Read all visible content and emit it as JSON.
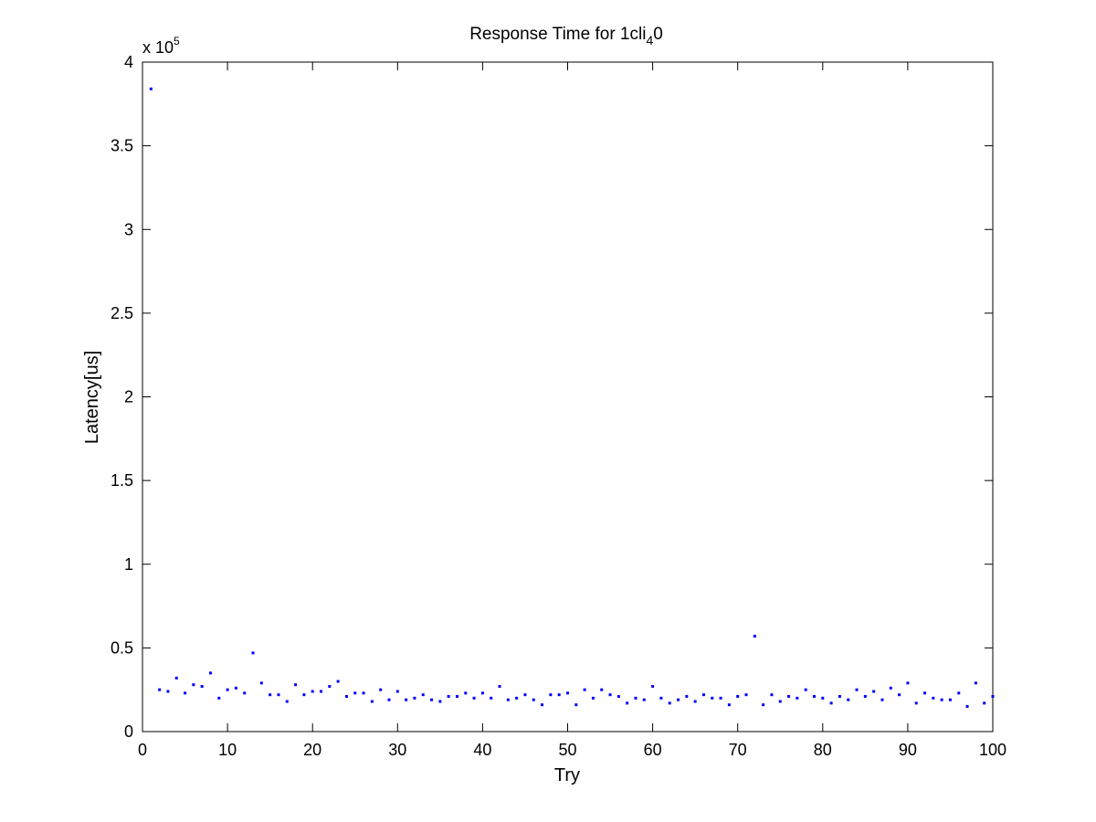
{
  "chart_data": {
    "type": "scatter",
    "title": {
      "prefix": "Response Time for 1cli",
      "subscript": "4",
      "suffix": "0"
    },
    "xlabel": "Try",
    "ylabel": "Latency[us]",
    "y_exponent": {
      "base": "x 10",
      "power": "5"
    },
    "xlim": [
      0,
      100
    ],
    "ylim": [
      0,
      4
    ],
    "x_ticks": [
      "0",
      "10",
      "20",
      "30",
      "40",
      "50",
      "60",
      "70",
      "80",
      "90",
      "100"
    ],
    "y_ticks": [
      "0",
      "0.5",
      "1",
      "1.5",
      "2",
      "2.5",
      "3",
      "3.5",
      "4"
    ],
    "grid": false,
    "marker_color": "#0000ff",
    "x": [
      1,
      2,
      3,
      4,
      5,
      6,
      7,
      8,
      9,
      10,
      11,
      12,
      13,
      14,
      15,
      16,
      17,
      18,
      19,
      20,
      21,
      22,
      23,
      24,
      25,
      26,
      27,
      28,
      29,
      30,
      31,
      32,
      33,
      34,
      35,
      36,
      37,
      38,
      39,
      40,
      41,
      42,
      43,
      44,
      45,
      46,
      47,
      48,
      49,
      50,
      51,
      52,
      53,
      54,
      55,
      56,
      57,
      58,
      59,
      60,
      61,
      62,
      63,
      64,
      65,
      66,
      67,
      68,
      69,
      70,
      71,
      72,
      73,
      74,
      75,
      76,
      77,
      78,
      79,
      80,
      81,
      82,
      83,
      84,
      85,
      86,
      87,
      88,
      89,
      90,
      91,
      92,
      93,
      94,
      95,
      96,
      97,
      98,
      99,
      100
    ],
    "y": [
      3.84,
      0.25,
      0.24,
      0.32,
      0.23,
      0.28,
      0.27,
      0.35,
      0.2,
      0.25,
      0.26,
      0.23,
      0.47,
      0.29,
      0.22,
      0.22,
      0.18,
      0.28,
      0.22,
      0.24,
      0.24,
      0.27,
      0.3,
      0.21,
      0.23,
      0.23,
      0.18,
      0.25,
      0.19,
      0.24,
      0.19,
      0.2,
      0.22,
      0.19,
      0.18,
      0.21,
      0.21,
      0.23,
      0.2,
      0.23,
      0.2,
      0.27,
      0.19,
      0.2,
      0.22,
      0.19,
      0.16,
      0.22,
      0.22,
      0.23,
      0.16,
      0.25,
      0.2,
      0.25,
      0.22,
      0.21,
      0.17,
      0.2,
      0.19,
      0.27,
      0.2,
      0.17,
      0.19,
      0.21,
      0.18,
      0.22,
      0.2,
      0.2,
      0.16,
      0.21,
      0.22,
      0.57,
      0.16,
      0.22,
      0.18,
      0.21,
      0.2,
      0.25,
      0.21,
      0.2,
      0.17,
      0.21,
      0.19,
      0.25,
      0.21,
      0.24,
      0.19,
      0.26,
      0.22,
      0.29,
      0.17,
      0.23,
      0.2,
      0.19,
      0.19,
      0.23,
      0.15,
      0.29,
      0.17,
      0.21
    ]
  }
}
